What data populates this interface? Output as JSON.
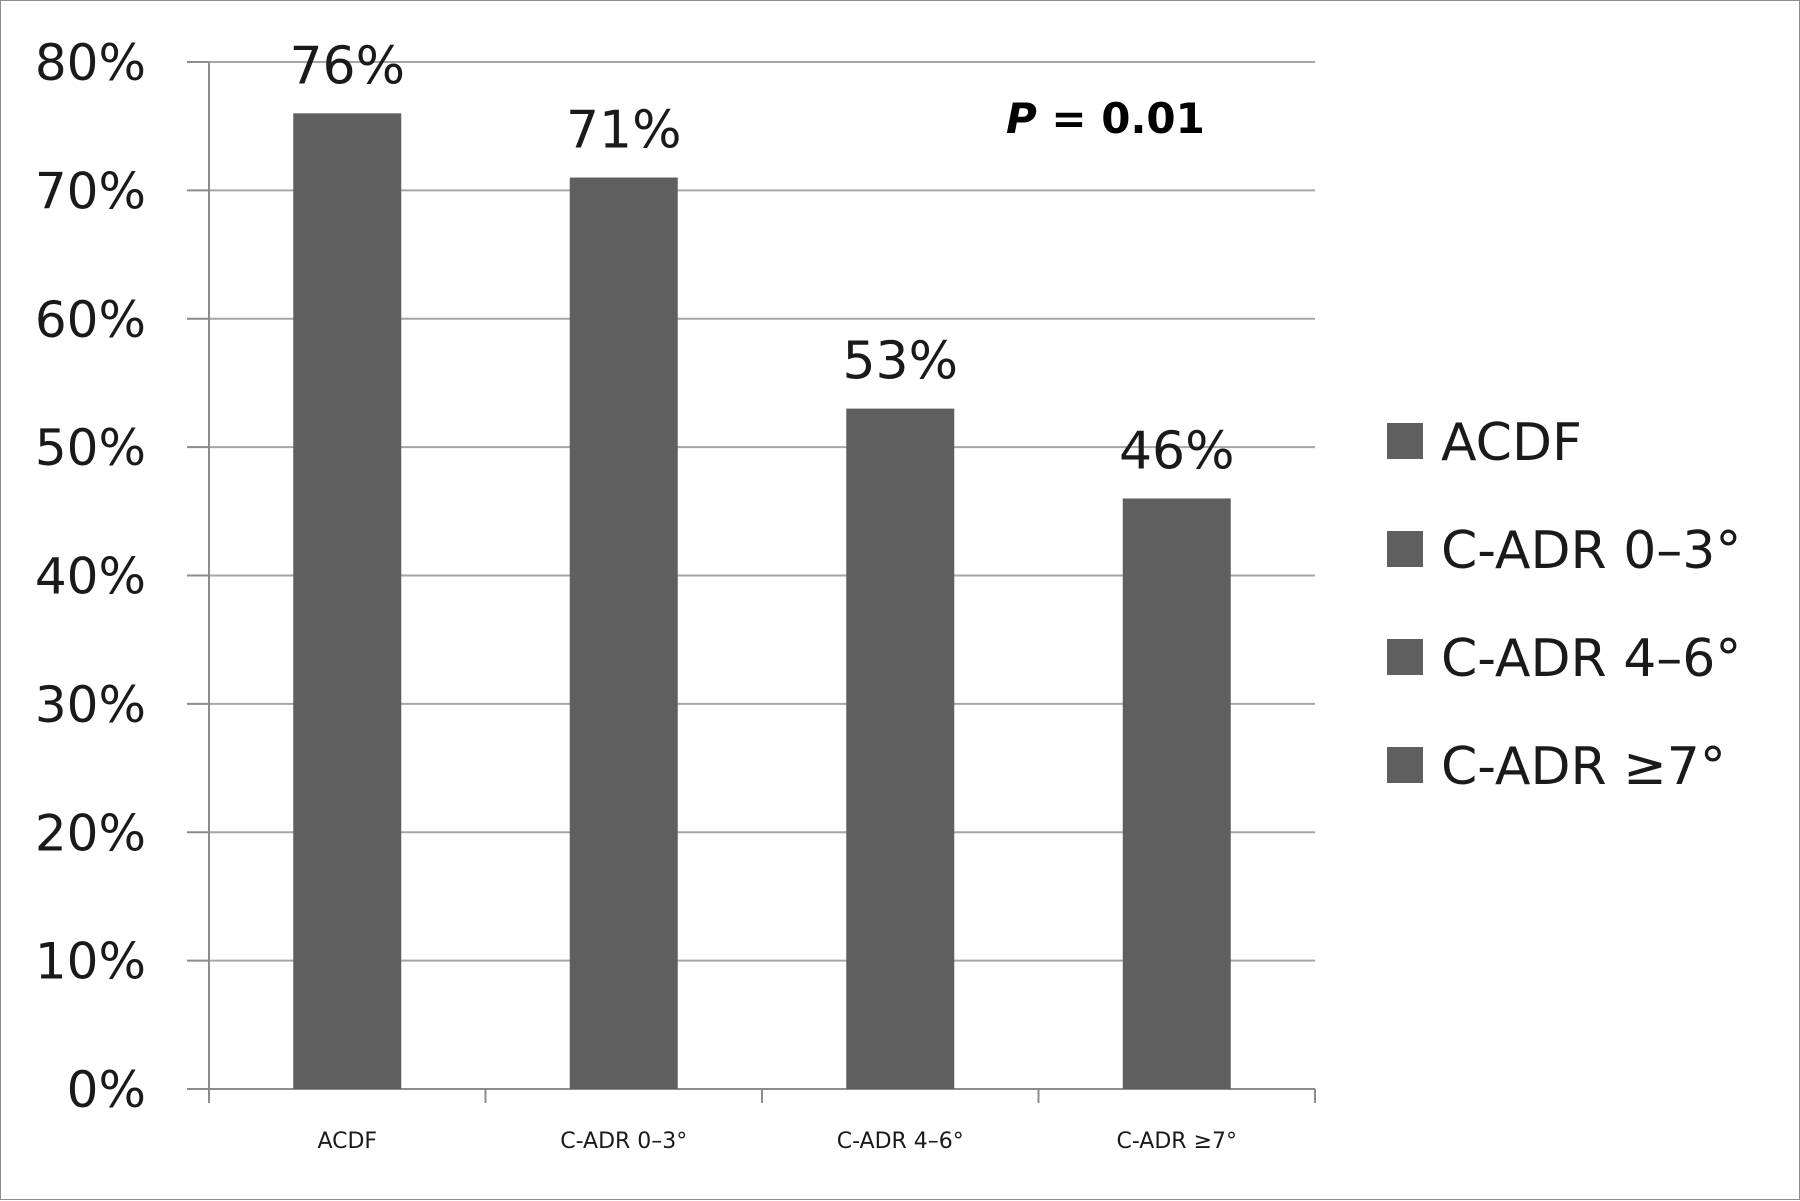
{
  "chart_data": {
    "type": "bar",
    "categories": [
      "ACDF",
      "C-ADR 0–3°",
      "C-ADR 4–6°",
      "C-ADR ≥7°"
    ],
    "values": [
      76,
      71,
      53,
      46
    ],
    "data_labels": [
      "76%",
      "71%",
      "53%",
      "46%"
    ],
    "title": "",
    "xlabel": "",
    "ylabel": "",
    "ylim": [
      0,
      80
    ],
    "y_ticks": [
      0,
      10,
      20,
      30,
      40,
      50,
      60,
      70,
      80
    ],
    "y_tick_labels": [
      "0%",
      "10%",
      "20%",
      "30%",
      "40%",
      "50%",
      "60%",
      "70%",
      "80%"
    ],
    "grid": true,
    "legend": {
      "placement": "right",
      "entries": [
        "ACDF",
        "C-ADR 0–3°",
        "C-ADR 4–6°",
        "C-ADR ≥7°"
      ]
    },
    "annotation": {
      "italic_part": "P",
      "rest": " = 0.01"
    },
    "colors": {
      "bar": "#5f5f5f",
      "grid": "#a6a6a6",
      "axis": "#8c8c8c"
    }
  }
}
